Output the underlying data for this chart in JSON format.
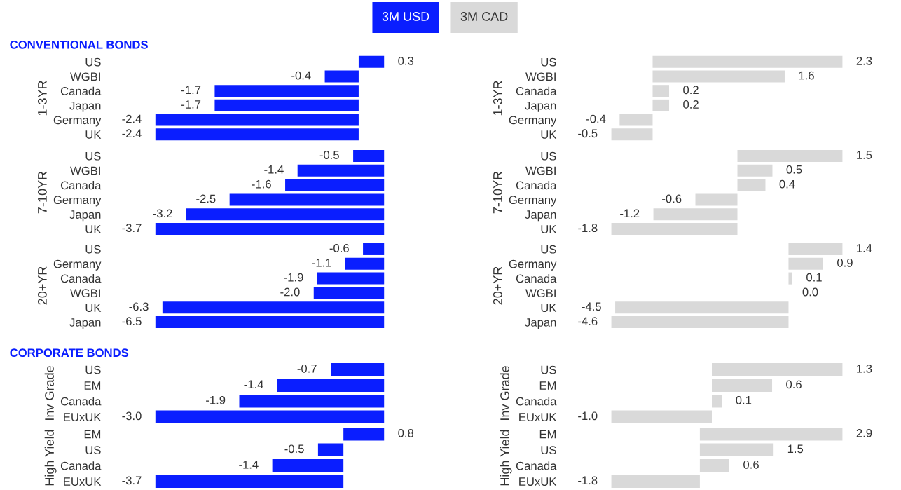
{
  "chart_data": [
    {
      "type": "bar",
      "orientation": "horizontal",
      "title": "CONVENTIONAL BONDS",
      "ylabel": "1-3YR",
      "categories": [
        "US",
        "WGBI",
        "Canada",
        "Japan",
        "Germany",
        "UK"
      ],
      "series": [
        {
          "name": "3M USD",
          "color": "#0a1eff",
          "values": [
            0.3,
            -0.4,
            -1.7,
            -1.7,
            -2.4,
            -2.4
          ],
          "value_labels": [
            "0.3",
            "-0.4",
            "-1.7",
            "-1.7",
            "-2.4",
            "-2.4"
          ]
        }
      ]
    },
    {
      "type": "bar",
      "orientation": "horizontal",
      "ylabel": "1-3YR",
      "categories": [
        "US",
        "WGBI",
        "Canada",
        "Japan",
        "Germany",
        "UK"
      ],
      "series": [
        {
          "name": "3M CAD",
          "color": "#d9d9d9",
          "values": [
            2.3,
            1.6,
            0.2,
            0.2,
            -0.4,
            -0.5
          ],
          "value_labels": [
            "2.3",
            "1.6",
            "0.2",
            "0.2",
            "-0.4",
            "-0.5"
          ]
        }
      ]
    },
    {
      "type": "bar",
      "orientation": "horizontal",
      "ylabel": "7-10YR",
      "categories": [
        "US",
        "WGBI",
        "Canada",
        "Germany",
        "Japan",
        "UK"
      ],
      "series": [
        {
          "color": "#0a1eff",
          "values": [
            -0.5,
            -1.4,
            -1.6,
            -2.5,
            -3.2,
            -3.7
          ],
          "value_labels": [
            "-0.5",
            "-1.4",
            "-1.6",
            "-2.5",
            "-3.2",
            "-3.7"
          ]
        }
      ]
    },
    {
      "type": "bar",
      "orientation": "horizontal",
      "ylabel": "7-10YR",
      "categories": [
        "US",
        "WGBI",
        "Canada",
        "Germany",
        "Japan",
        "UK"
      ],
      "series": [
        {
          "color": "#d9d9d9",
          "values": [
            1.5,
            0.5,
            0.4,
            -0.6,
            -1.2,
            -1.8
          ],
          "value_labels": [
            "1.5",
            "0.5",
            "0.4",
            "-0.6",
            "-1.2",
            "-1.8"
          ]
        }
      ]
    },
    {
      "type": "bar",
      "orientation": "horizontal",
      "ylabel": "20+YR",
      "categories": [
        "US",
        "Germany",
        "Canada",
        "WGBI",
        "UK",
        "Japan"
      ],
      "series": [
        {
          "color": "#0a1eff",
          "values": [
            -0.6,
            -1.1,
            -1.9,
            -2.0,
            -6.3,
            -6.5
          ],
          "value_labels": [
            "-0.6",
            "-1.1",
            "-1.9",
            "-2.0",
            "-6.3",
            "-6.5"
          ]
        }
      ]
    },
    {
      "type": "bar",
      "orientation": "horizontal",
      "ylabel": "20+YR",
      "categories": [
        "US",
        "Germany",
        "Canada",
        "WGBI",
        "UK",
        "Japan"
      ],
      "series": [
        {
          "color": "#d9d9d9",
          "values": [
            1.4,
            0.9,
            0.1,
            0.0,
            -4.5,
            -4.6
          ],
          "value_labels": [
            "1.4",
            "0.9",
            "0.1",
            "0.0",
            "-4.5",
            "-4.6"
          ]
        }
      ]
    },
    {
      "type": "bar",
      "orientation": "horizontal",
      "title": "CORPORATE BONDS",
      "ylabel": "Inv Grade",
      "categories": [
        "US",
        "EM",
        "Canada",
        "EUxUK"
      ],
      "series": [
        {
          "color": "#0a1eff",
          "values": [
            -0.7,
            -1.4,
            -1.9,
            -3.0
          ],
          "value_labels": [
            "-0.7",
            "-1.4",
            "-1.9",
            "-3.0"
          ]
        }
      ]
    },
    {
      "type": "bar",
      "orientation": "horizontal",
      "ylabel": "Inv Grade",
      "categories": [
        "US",
        "EM",
        "Canada",
        "EUxUK"
      ],
      "series": [
        {
          "color": "#d9d9d9",
          "values": [
            1.3,
            0.6,
            0.1,
            -1.0
          ],
          "value_labels": [
            "1.3",
            "0.6",
            "0.1",
            "-1.0"
          ]
        }
      ]
    },
    {
      "type": "bar",
      "orientation": "horizontal",
      "ylabel": "High Yield",
      "categories": [
        "EM",
        "US",
        "Canada",
        "EUxUK"
      ],
      "series": [
        {
          "color": "#0a1eff",
          "values": [
            0.8,
            -0.5,
            -1.4,
            -3.7
          ],
          "value_labels": [
            "0.8",
            "-0.5",
            "-1.4",
            "-3.7"
          ]
        }
      ]
    },
    {
      "type": "bar",
      "orientation": "horizontal",
      "ylabel": "High Yield",
      "categories": [
        "EM",
        "US",
        "Canada",
        "EUxUK"
      ],
      "series": [
        {
          "color": "#d9d9d9",
          "values": [
            2.9,
            1.5,
            0.6,
            -1.8
          ],
          "value_labels": [
            "2.9",
            "1.5",
            "0.6",
            "-1.8"
          ]
        }
      ]
    }
  ]
}
